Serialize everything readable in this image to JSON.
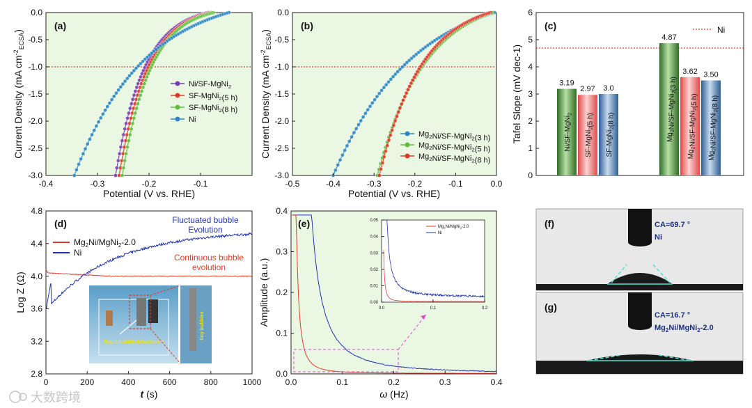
{
  "chart_data": [
    {
      "panel": "(a)",
      "type": "line",
      "xlabel": "Potential (V vs. RHE)",
      "ylabel": "Current Density (mA cm-2ECSA)",
      "xlim": [
        -0.4,
        0.0
      ],
      "ylim": [
        -3.0,
        0.0
      ],
      "xticks": [
        "-0.4",
        "-0.3",
        "-0.2",
        "-0.1"
      ],
      "yticks": [
        "0.0",
        "-0.5",
        "-1.0",
        "-1.5",
        "-2.0",
        "-2.5",
        "-3.0"
      ],
      "reference_line": {
        "y": -1.0,
        "style": "dotted",
        "color": "#d9412a"
      },
      "series": [
        {
          "name": "Ni/SF-MgNi2",
          "color": "#7b3fb5",
          "onset": -0.085,
          "end": -0.265,
          "k": 3.2
        },
        {
          "name": "SF-MgNi2(5 h)",
          "color": "#e03a2a",
          "onset": -0.08,
          "end": -0.258,
          "k": 3.2
        },
        {
          "name": "SF-MgNi2(8 h)",
          "color": "#5fbf3a",
          "onset": -0.075,
          "end": -0.252,
          "k": 3.2
        },
        {
          "name": "Ni",
          "color": "#2f88c3",
          "onset": -0.045,
          "end": -0.345,
          "k": 2.2
        }
      ]
    },
    {
      "panel": "(b)",
      "type": "line",
      "xlabel": "Potential (V vs. RHE)",
      "ylabel": "Current Density (mA cm-2ECSA)",
      "xlim": [
        -0.5,
        0.0
      ],
      "ylim": [
        -3.0,
        0.0
      ],
      "xticks": [
        "-0.5",
        "-0.4",
        "-0.3",
        "-0.2",
        "-0.1",
        "0.0"
      ],
      "yticks": [
        "0.0",
        "-0.5",
        "-1.0",
        "-1.5",
        "-2.0",
        "-2.5",
        "-3.0"
      ],
      "reference_line": {
        "y": -1.0,
        "style": "dotted",
        "color": "#d9412a"
      },
      "series": [
        {
          "name": "Mg2Ni/SF-MgNi2(3 h)",
          "color": "#2f88c3",
          "onset": -0.005,
          "end": -0.4,
          "k": 2.0
        },
        {
          "name": "Mg2Ni/SF-MgNi2(5 h)",
          "color": "#5fbf3a",
          "onset": -0.01,
          "end": -0.292,
          "k": 2.4
        },
        {
          "name": "Mg2Ni/SF-MgNi2(8 h)",
          "color": "#e03a2a",
          "onset": -0.015,
          "end": -0.287,
          "k": 2.6
        }
      ]
    },
    {
      "panel": "(c)",
      "type": "bar",
      "ylabel": "Tafel Slope (mV dec-1)",
      "ylim": [
        0,
        6
      ],
      "yticks": [
        "0",
        "1",
        "2",
        "3",
        "4",
        "5",
        "6"
      ],
      "reference_line": {
        "y": 4.8,
        "label": "Ni",
        "style": "dotted",
        "color": "#d9412a"
      },
      "categories": [
        "Ni/SF-MgNi2",
        "SF-MgNi2(5 h)",
        "SF-MgNi2(8 h)",
        "Mg2Ni/SF-MgNi2(3 h)",
        "Mg2Ni/SF-MgNi2(5 h)",
        "Mg2Ni/SF-MgNi2(8 h)"
      ],
      "values": [
        3.19,
        2.97,
        3.0,
        4.87,
        3.62,
        3.5
      ],
      "value_labels": [
        "3.19",
        "2.97",
        "3.0",
        "4.87",
        "3.62",
        "3.50"
      ],
      "colors": [
        "#4f9a3a",
        "#e86a6a",
        "#4a7fb5",
        "#4f9a3a",
        "#e86a6a",
        "#4a7fb5"
      ]
    },
    {
      "panel": "(d)",
      "type": "line",
      "xlabel": "t (s)",
      "ylabel": "Log Z (Ω)",
      "xlim": [
        0,
        1000
      ],
      "ylim": [
        2.8,
        4.8
      ],
      "xticks": [
        "0",
        "200",
        "400",
        "600",
        "800",
        "1000"
      ],
      "yticks": [
        "2.8",
        "3.2",
        "3.6",
        "4.0",
        "4.4",
        "4.8"
      ],
      "series": [
        {
          "name": "Mg2Ni/MgNi2-2.0",
          "color": "#e03a2a",
          "start": 4.08,
          "level": 4.0
        },
        {
          "name": "Ni",
          "color": "#2233aa",
          "start": 3.58,
          "level": 4.56
        }
      ],
      "annotations": [
        "Fluctuated bubble Evolution",
        "Continuous bubble evolution",
        "Rapid bubble detachment",
        "tiny bubbles"
      ]
    },
    {
      "panel": "(e)",
      "type": "line",
      "xlabel": "ω (Hz)",
      "ylabel": "Amplitude (a.u.)",
      "xlim": [
        0,
        0.4
      ],
      "ylim": [
        0,
        0.4
      ],
      "xticks": [
        "0.0",
        "0.1",
        "0.2",
        "0.3",
        "0.4"
      ],
      "yticks": [
        "0.0",
        "0.1",
        "0.2",
        "0.3",
        "0.4"
      ],
      "inset": {
        "xlim": [
          0,
          0.2
        ],
        "ylim": [
          0,
          0.05
        ],
        "xticks": [
          "0.0",
          "0.1",
          "0.2"
        ],
        "yticks": [
          "0.00",
          "0.01",
          "0.02",
          "0.03",
          "0.04",
          "0.05"
        ]
      },
      "series": [
        {
          "name": "Mg2Ni/MgNi2-2.0",
          "color": "#e03a2a"
        },
        {
          "name": "Ni",
          "color": "#2233aa"
        }
      ]
    }
  ],
  "panel_f": {
    "label": "(f)",
    "ca": "CA=69.7 °",
    "sample": "Ni"
  },
  "panel_g": {
    "label": "(g)",
    "ca": "CA=16.7 °",
    "sample": "Mg2Ni/MgNi2-2.0"
  },
  "watermark": "大数跨境"
}
